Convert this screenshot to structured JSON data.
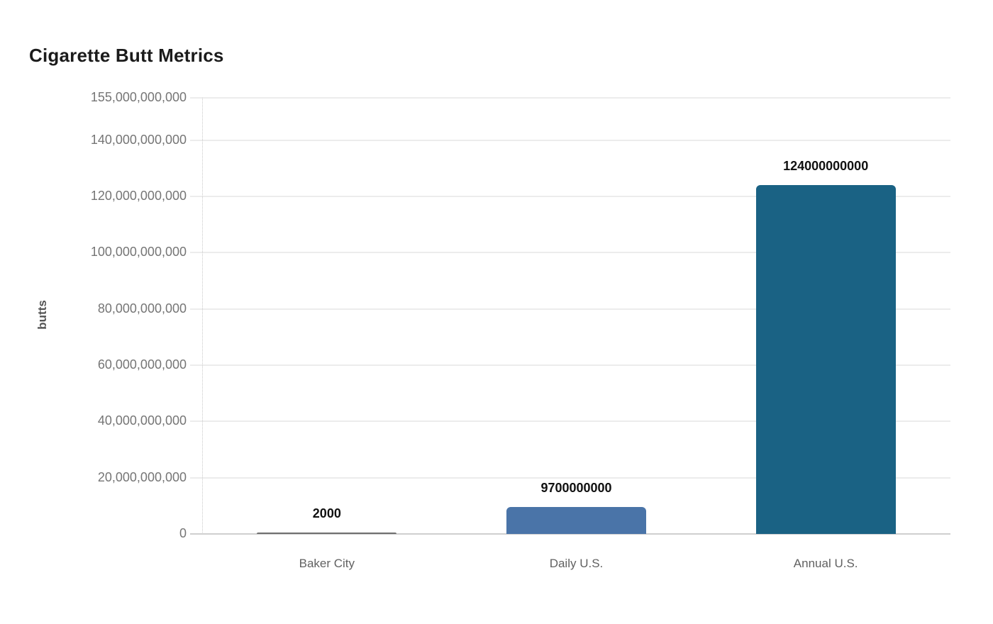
{
  "page": {
    "background_color": "#ffffff"
  },
  "chart_data": {
    "type": "bar",
    "title": "Cigarette Butt Metrics",
    "xlabel": "",
    "ylabel": "butts",
    "categories": [
      "Baker City",
      "Daily U.S.",
      "Annual U.S."
    ],
    "values": [
      2000,
      9700000000,
      124000000000
    ],
    "value_labels": [
      "2000",
      "9700000000",
      "124000000000"
    ],
    "bar_colors": [
      "#6f6f6f",
      "#4a74a8",
      "#1a6284"
    ],
    "ylim": [
      0,
      155000000000
    ],
    "grid": "horizontal",
    "legend_position": "none",
    "yticks": [
      {
        "value": 0,
        "label": "0"
      },
      {
        "value": 20000000000,
        "label": "20,000,000,000"
      },
      {
        "value": 40000000000,
        "label": "40,000,000,000"
      },
      {
        "value": 60000000000,
        "label": "60,000,000,000"
      },
      {
        "value": 80000000000,
        "label": "80,000,000,000"
      },
      {
        "value": 100000000000,
        "label": "100,000,000,000"
      },
      {
        "value": 120000000000,
        "label": "120,000,000,000"
      },
      {
        "value": 140000000000,
        "label": "140,000,000,000"
      },
      {
        "value": 155000000000,
        "label": "155,000,000,000"
      }
    ],
    "colors": {
      "gridline": "#ececec",
      "baseline": "#cfcfcf",
      "axis_dotted_line": "#c9c9c9",
      "tick_text": "#757575",
      "category_text": "#616161",
      "value_label_text": "#111111",
      "title_text": "#1b1b1b",
      "ylabel_text": "#555555"
    }
  }
}
